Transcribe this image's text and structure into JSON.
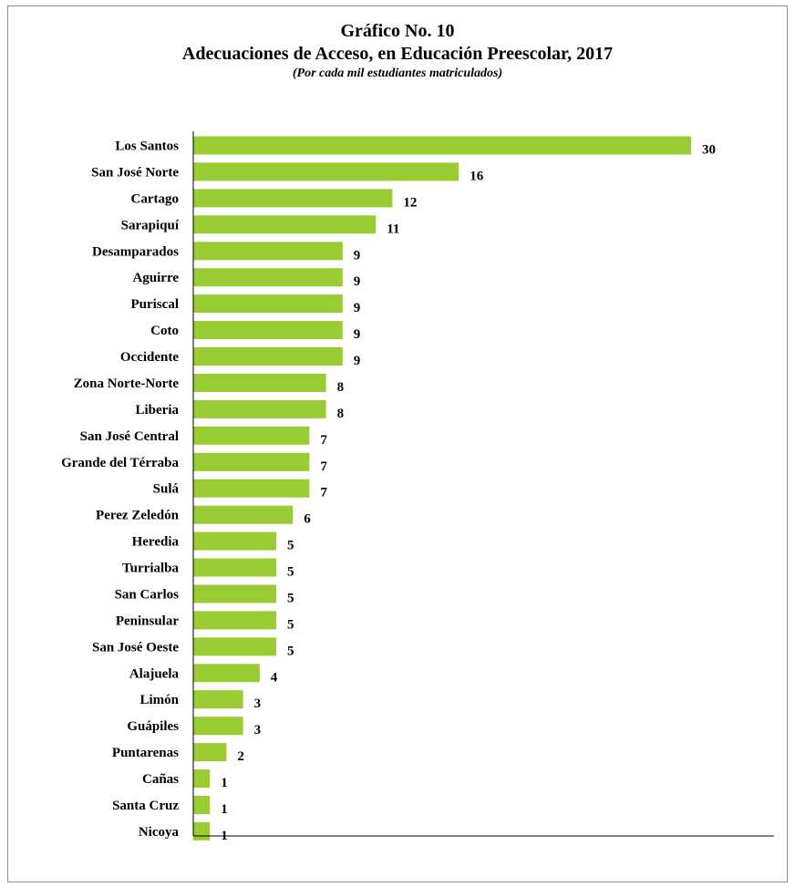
{
  "chart_data": {
    "type": "bar",
    "orientation": "horizontal",
    "title": "Gráfico No. 10",
    "subtitle": "Adecuaciones de Acceso, en Educación Preescolar, 2017",
    "note": "(Por cada mil estudiantes matriculados)",
    "bar_color": "#99cc33",
    "xlim": [
      0,
      35
    ],
    "categories": [
      "Los Santos",
      "San José Norte",
      "Cartago",
      "Sarapiquí",
      "Desamparados",
      "Aguirre",
      "Puriscal",
      "Coto",
      "Occidente",
      "Zona Norte-Norte",
      "Liberia",
      "San José Central",
      "Grande del Térraba",
      "Sulá",
      "Perez Zeledón",
      "Heredia",
      "Turrialba",
      "San Carlos",
      "Peninsular",
      "San José Oeste",
      "Alajuela",
      "Limón",
      "Guápiles",
      "Puntarenas",
      "Cañas",
      "Santa Cruz",
      "Nicoya"
    ],
    "values": [
      30,
      16,
      12,
      11,
      9,
      9,
      9,
      9,
      9,
      8,
      8,
      7,
      7,
      7,
      6,
      5,
      5,
      5,
      5,
      5,
      4,
      3,
      3,
      2,
      1,
      1,
      1
    ],
    "data_labels": [
      "30",
      "16",
      "12",
      "11",
      "9",
      "9",
      "9",
      "9",
      "9",
      "8",
      "8",
      "7",
      "7",
      "7",
      "6",
      "5",
      "5",
      "5",
      "5",
      "5",
      "4",
      "3",
      "3",
      "2",
      "1",
      "1",
      "1"
    ]
  }
}
